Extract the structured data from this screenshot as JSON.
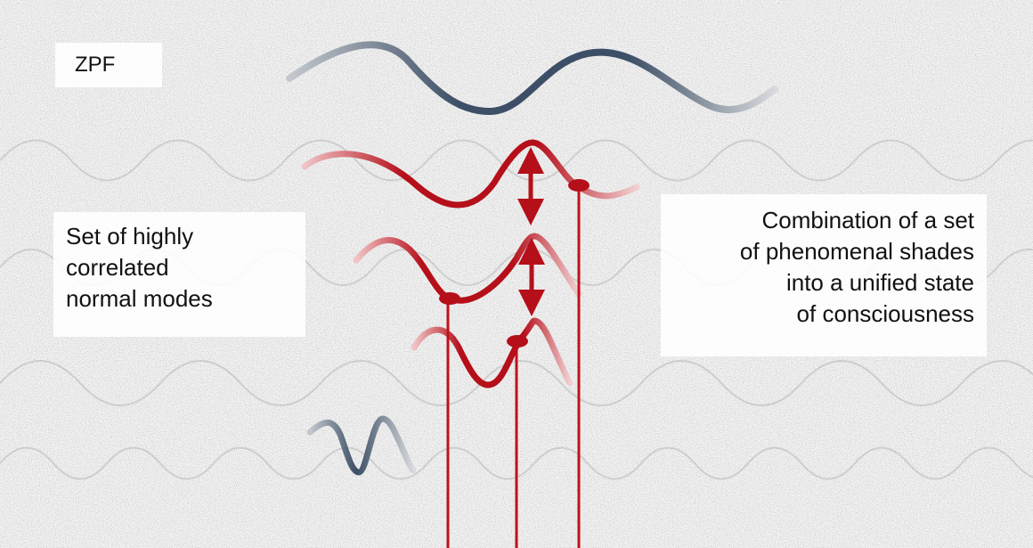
{
  "labels": {
    "zpf": "ZPF",
    "correlated_modes": "Set of highly\ncorrelated\nnormal modes",
    "combination": "Combination of a set\nof phenomenal shades\ninto a unified state\nof consciousness"
  },
  "colors": {
    "background": "#f3f3f3",
    "zpf_wave": "#3d4f66",
    "mode_wave": "#b50f1a",
    "connector": "#c0111c",
    "label_text": "#111111"
  }
}
